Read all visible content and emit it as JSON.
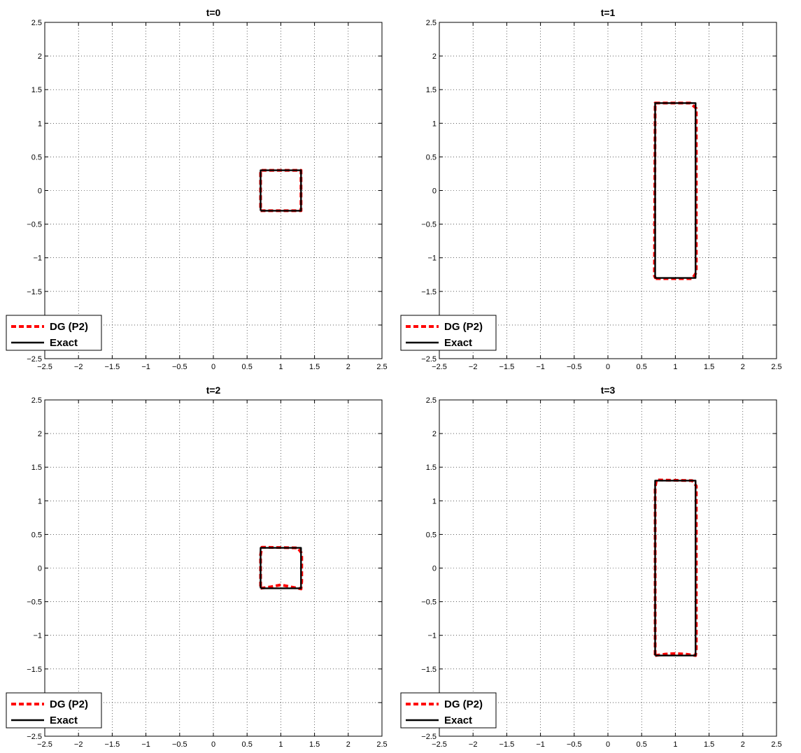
{
  "chart_data": [
    {
      "type": "line",
      "title": "t=0",
      "xlim": [
        -2.5,
        2.5
      ],
      "ylim": [
        -2.5,
        2.5
      ],
      "grid": true,
      "legend_position": "bottom-left",
      "x_ticks": [
        "−2.5",
        "−2",
        "−1.5",
        "−1",
        "−0.5",
        "0",
        "0.5",
        "1",
        "1.5",
        "2",
        "2.5"
      ],
      "y_ticks": [
        "−2.5",
        "−2",
        "−1.5",
        "−1",
        "−0.5",
        "0",
        "0.5",
        "1",
        "1.5",
        "2",
        "2.5"
      ],
      "series": [
        {
          "name": "DG (P2)",
          "color": "#ff0000",
          "style": "dashed",
          "x": [
            0.7,
            1.3,
            1.3,
            0.7,
            0.7
          ],
          "y": [
            -0.3,
            -0.3,
            0.3,
            0.3,
            -0.3
          ]
        },
        {
          "name": "Exact",
          "color": "#000000",
          "style": "solid",
          "x": [
            0.7,
            1.3,
            1.3,
            0.7,
            0.7
          ],
          "y": [
            -0.3,
            -0.3,
            0.3,
            0.3,
            -0.3
          ]
        }
      ]
    },
    {
      "type": "line",
      "title": "t=1",
      "xlim": [
        -2.5,
        2.5
      ],
      "ylim": [
        -2.5,
        2.5
      ],
      "grid": true,
      "legend_position": "bottom-left",
      "x_ticks": [
        "−2.5",
        "−2",
        "−1.5",
        "−1",
        "−0.5",
        "0",
        "0.5",
        "1",
        "1.5",
        "2",
        "2.5"
      ],
      "y_ticks": [
        "−2.5",
        "−2",
        "−1.5",
        "−1",
        "−0.5",
        "0",
        "0.5",
        "1",
        "1.5",
        "2",
        "2.5"
      ],
      "series": [
        {
          "name": "DG (P2)",
          "color": "#ff0000",
          "style": "dashed",
          "x": [
            0.71,
            1.25,
            1.31,
            1.31,
            1.22,
            0.7,
            0.69,
            0.71
          ],
          "y": [
            -1.31,
            -1.31,
            -1.22,
            1.22,
            1.3,
            1.3,
            -1.27,
            -1.31
          ]
        },
        {
          "name": "Exact",
          "color": "#000000",
          "style": "solid",
          "x": [
            0.7,
            1.3,
            1.3,
            0.7,
            0.7
          ],
          "y": [
            -1.3,
            -1.3,
            1.3,
            1.3,
            -1.3
          ]
        }
      ]
    },
    {
      "type": "line",
      "title": "t=2",
      "xlim": [
        -2.5,
        2.5
      ],
      "ylim": [
        -2.5,
        2.5
      ],
      "grid": true,
      "legend_position": "bottom-left",
      "x_ticks": [
        "−2.5",
        "−2",
        "−1.5",
        "−1",
        "−0.5",
        "0",
        "0.5",
        "1",
        "1.5",
        "2",
        "2.5"
      ],
      "y_ticks": [
        "−2.5",
        "−2",
        "−1.5",
        "−1",
        "−0.5",
        "0",
        "0.5",
        "1",
        "1.5",
        "2",
        "2.5"
      ],
      "series": [
        {
          "name": "DG (P2)",
          "color": "#ff0000",
          "style": "dashed",
          "x": [
            0.7,
            0.85,
            1.0,
            1.15,
            1.3,
            1.31,
            1.31,
            1.25,
            0.72,
            0.7,
            0.7
          ],
          "y": [
            -0.3,
            -0.28,
            -0.25,
            -0.28,
            -0.31,
            -0.2,
            0.22,
            0.3,
            0.31,
            0.2,
            -0.3
          ]
        },
        {
          "name": "Exact",
          "color": "#000000",
          "style": "solid",
          "x": [
            0.7,
            1.3,
            1.3,
            0.7,
            0.7
          ],
          "y": [
            -0.3,
            -0.3,
            0.3,
            0.3,
            -0.3
          ]
        }
      ]
    },
    {
      "type": "line",
      "title": "t=3",
      "xlim": [
        -2.5,
        2.5
      ],
      "ylim": [
        -2.5,
        2.5
      ],
      "grid": true,
      "legend_position": "bottom-left",
      "x_ticks": [
        "−2.5",
        "−2",
        "−1.5",
        "−1",
        "−0.5",
        "0",
        "0.5",
        "1",
        "1.5",
        "2",
        "2.5"
      ],
      "y_ticks": [
        "−2.5",
        "−2",
        "−1.5",
        "−1",
        "−0.5",
        "0",
        "0.5",
        "1",
        "1.5",
        "2",
        "2.5"
      ],
      "series": [
        {
          "name": "DG (P2)",
          "color": "#ff0000",
          "style": "dashed",
          "x": [
            0.7,
            0.85,
            1.0,
            1.15,
            1.3,
            1.31,
            1.31,
            1.25,
            0.72,
            0.7,
            0.7
          ],
          "y": [
            -1.3,
            -1.28,
            -1.27,
            -1.28,
            -1.3,
            -1.2,
            1.22,
            1.3,
            1.31,
            1.2,
            -1.3
          ]
        },
        {
          "name": "Exact",
          "color": "#000000",
          "style": "solid",
          "x": [
            0.7,
            1.3,
            1.3,
            0.7,
            0.7
          ],
          "y": [
            -1.3,
            -1.3,
            1.3,
            1.3,
            -1.3
          ]
        }
      ]
    }
  ]
}
